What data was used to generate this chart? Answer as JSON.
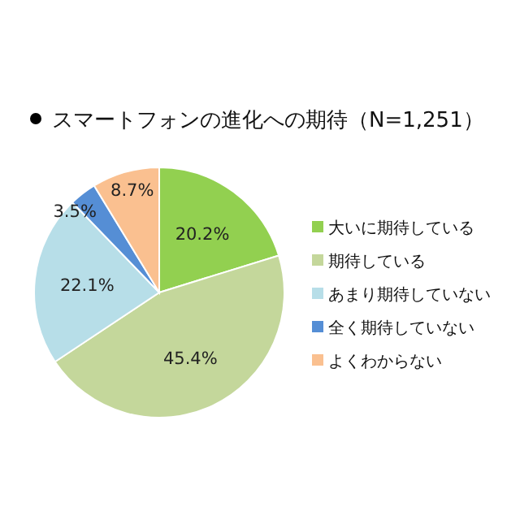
{
  "chart_data": {
    "type": "pie",
    "title": "スマートフォンの進化への期待（N=1,251）",
    "categories": [
      "大いに期待している",
      "期待している",
      "あまり期待していない",
      "全く期待していない",
      "よくわからない"
    ],
    "values": [
      20.2,
      45.4,
      22.1,
      3.5,
      8.7
    ],
    "colors": [
      "#92d050",
      "#c4d79b",
      "#b7dee8",
      "#558ed5",
      "#fac090"
    ],
    "value_labels": [
      "20.2%",
      "45.4%",
      "22.1%",
      "3.5%",
      "8.7%"
    ],
    "legend": "right"
  }
}
